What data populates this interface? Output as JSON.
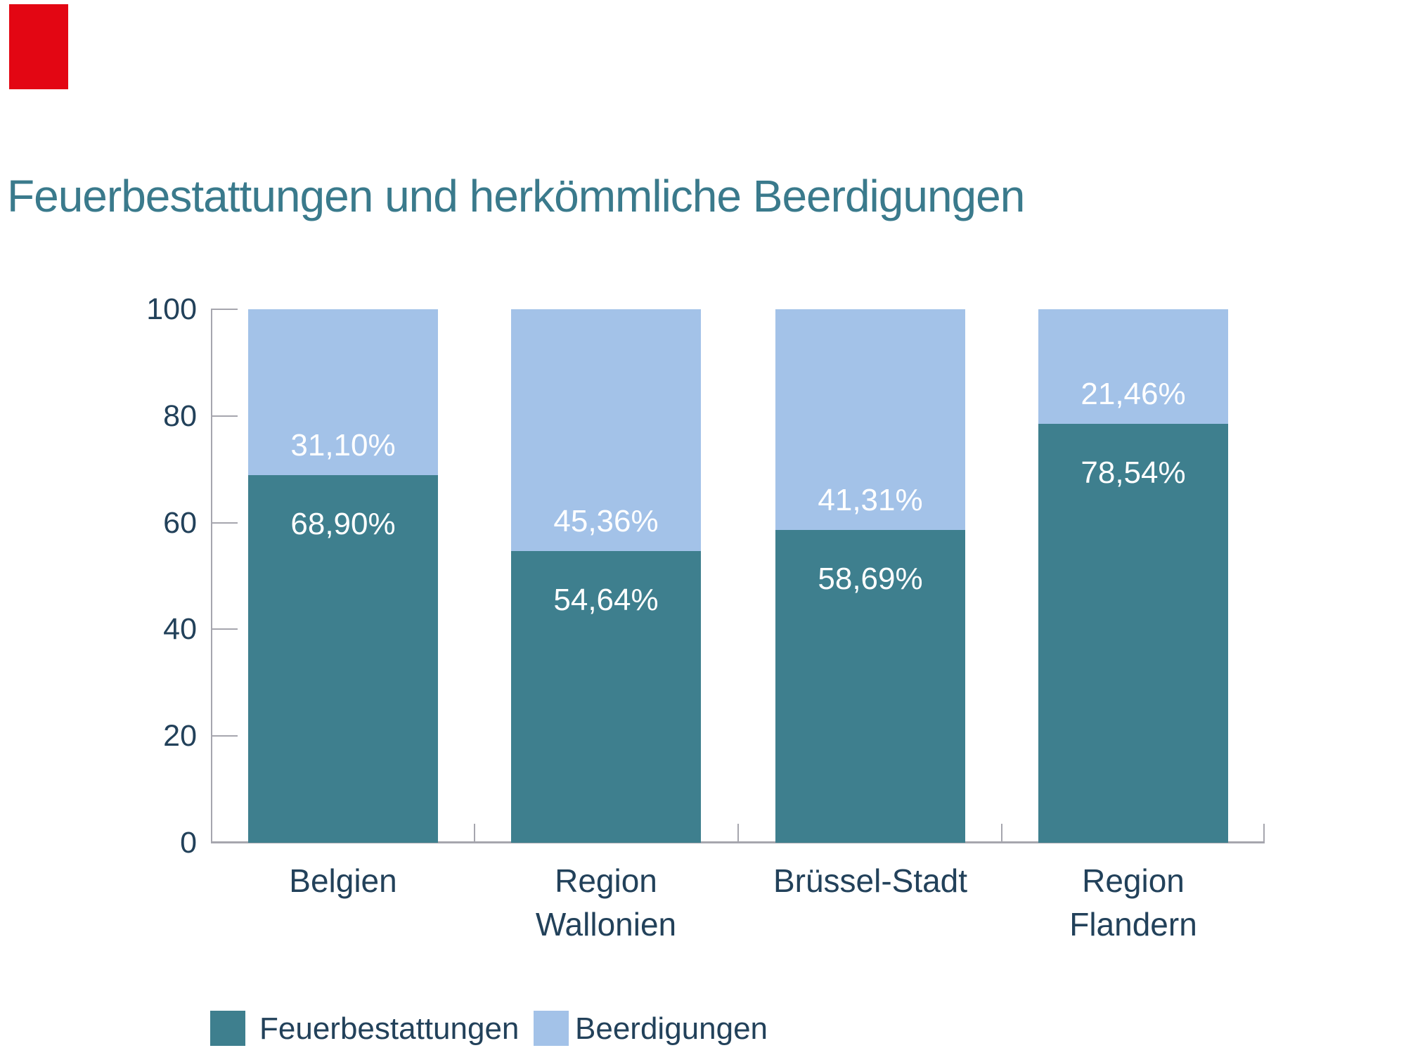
{
  "brand": {
    "logo_color": "#e30613"
  },
  "colors": {
    "title": "#3a7a8c",
    "navy_text": "#22415a",
    "axis_gray": "#a6a6ae",
    "background": "#ffffff",
    "bar_label_text": "#ffffff"
  },
  "chart_data": {
    "type": "bar",
    "stacked": true,
    "title": "Feuerbestattungen und herkömmliche Beerdigungen",
    "categories": [
      "Belgien",
      "Region Wallonien",
      "Brüssel-Stadt",
      "Region Flandern"
    ],
    "category_label_lines": [
      [
        "Belgien"
      ],
      [
        "Region",
        "Wallonien"
      ],
      [
        "Brüssel-Stadt"
      ],
      [
        "Region",
        "Flandern"
      ]
    ],
    "series": [
      {
        "name": "Feuerbestattungen",
        "color": "#3e7f8e",
        "position": "bottom",
        "values": [
          68.9,
          54.64,
          58.69,
          78.54
        ],
        "value_labels": [
          "68,90%",
          "54,64%",
          "58,69%",
          "78,54%"
        ]
      },
      {
        "name": "Beerdigungen",
        "color": "#a3c2e8",
        "position": "top",
        "values": [
          31.1,
          45.36,
          41.31,
          21.46
        ],
        "value_labels": [
          "31,10%",
          "45,36%",
          "41,31%",
          "21,46%"
        ]
      }
    ],
    "xlabel": "",
    "ylabel": "",
    "ylim": [
      0,
      100
    ],
    "y_ticks": [
      0,
      20,
      40,
      60,
      80,
      100
    ],
    "y_tick_labels": [
      "0",
      "20",
      "40",
      "60",
      "80",
      "100"
    ],
    "grid": false,
    "legend_position": "bottom"
  }
}
